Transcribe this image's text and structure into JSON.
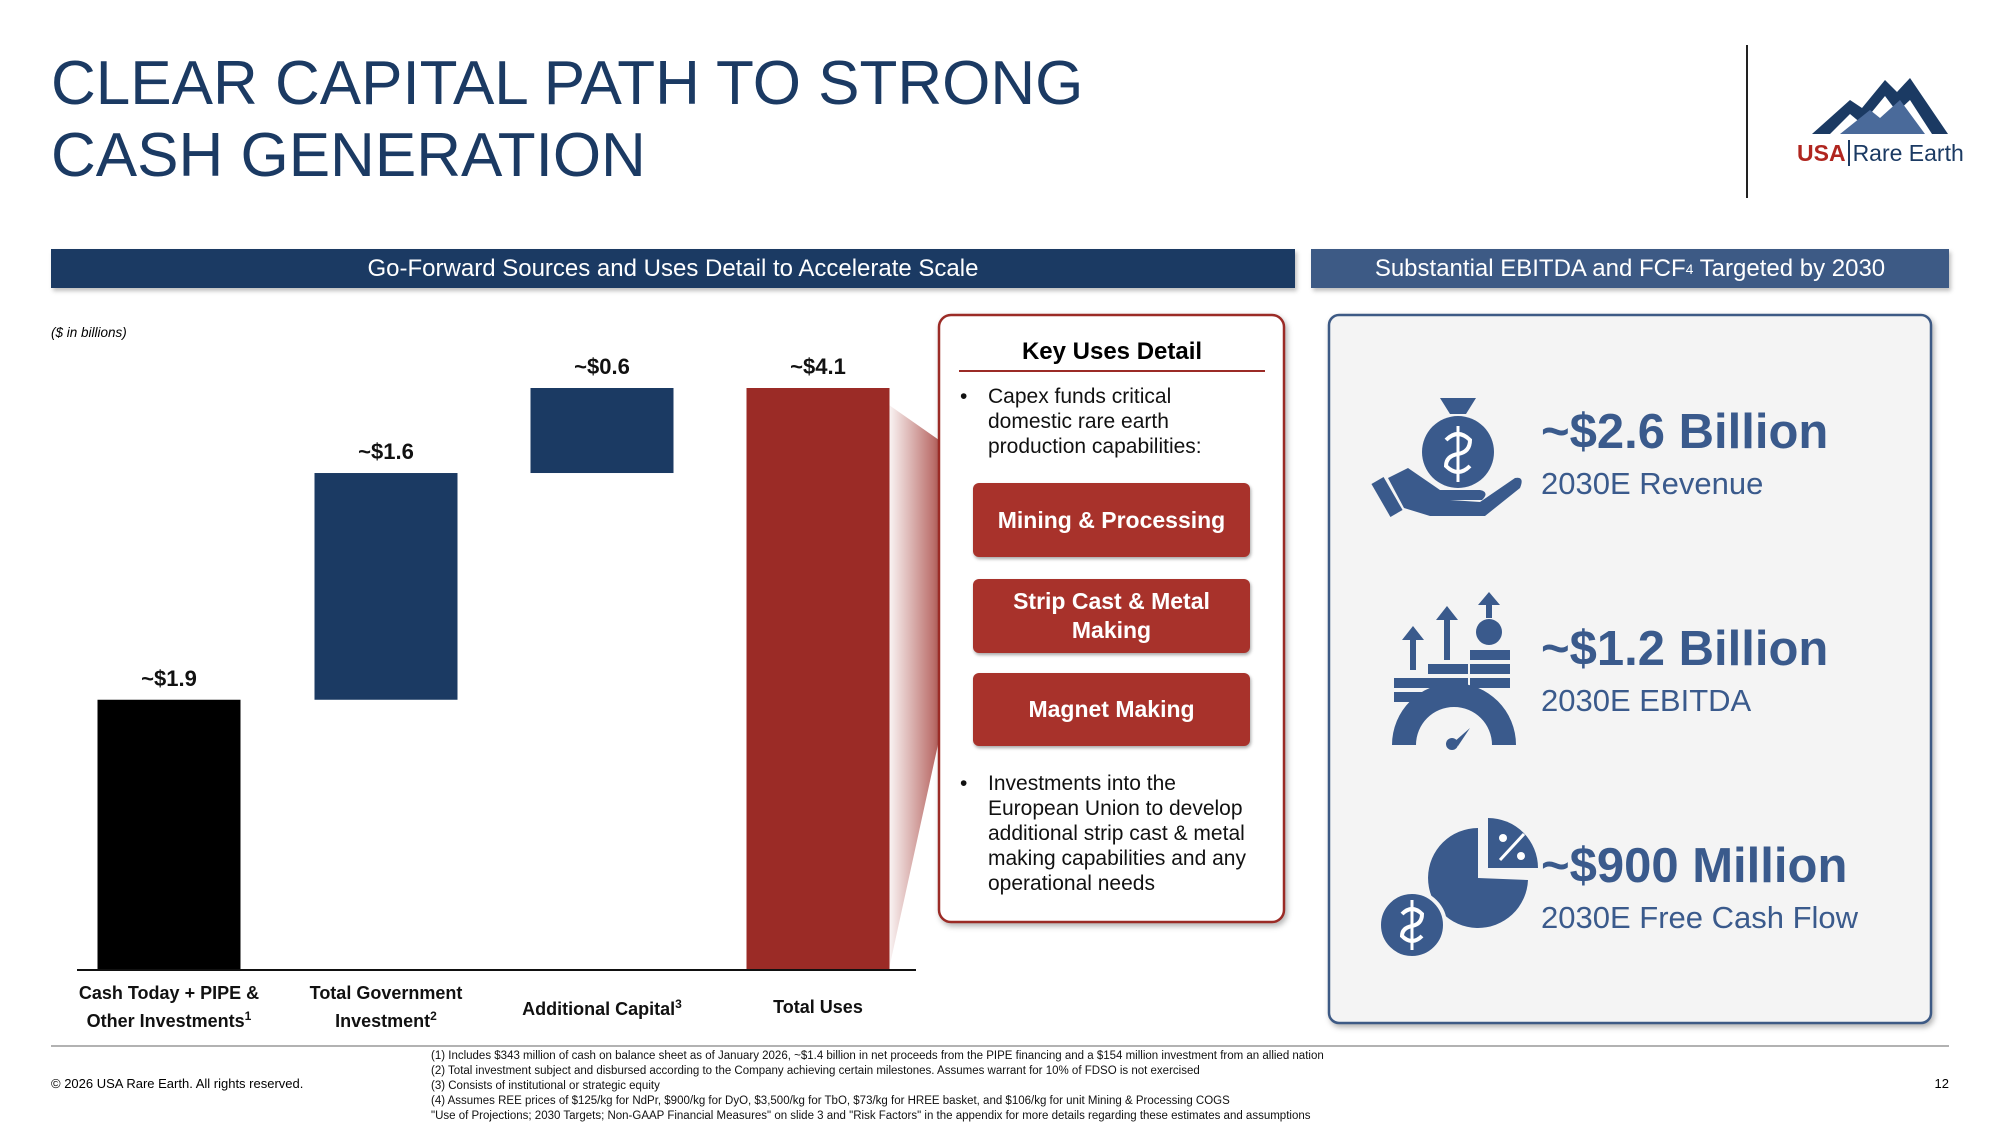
{
  "title": [
    "CLEAR CAPITAL PATH TO STRONG",
    "CASH GENERATION"
  ],
  "logo": {
    "brand": "USA",
    "name": "Rare Earth"
  },
  "header_left": "Go-Forward Sources and Uses Detail to Accelerate Scale",
  "header_right": {
    "text": "Substantial EBITDA and FCF",
    "sup": "4",
    "text_after": " Targeted by 2030"
  },
  "chart_data": {
    "type": "waterfall",
    "units_note": "($ in billions)",
    "categories": [
      "Cash Today + PIPE & Other Investments",
      "Total Government Investment",
      "Additional Capital",
      "Total Uses"
    ],
    "category_notes": [
      "1",
      "2",
      "3",
      null
    ],
    "measures": [
      "absolute",
      "relative",
      "relative",
      "total"
    ],
    "values": [
      1.9,
      1.6,
      0.6,
      4.1
    ],
    "value_labels": [
      "~$1.9",
      "~$1.6",
      "~$0.6",
      "~$4.1"
    ],
    "colors": [
      "#000000",
      "#1b3a63",
      "#1b3a63",
      "#9b2b26"
    ]
  },
  "key_uses": {
    "title": "Key Uses Detail",
    "bullets": [
      "Capex funds critical domestic rare earth production capabilities:",
      "Investments into the European Union to develop additional strip cast & metal making capabilities and any operational needs"
    ],
    "items": [
      "Mining & Processing",
      "Strip Cast & Metal Making",
      "Magnet Making"
    ]
  },
  "kpis": [
    {
      "value": "~$2.6 Billion",
      "label": "2030E Revenue"
    },
    {
      "value": "~$1.2 Billion",
      "label": "2030E EBITDA"
    },
    {
      "value": "~$900 Million",
      "label": "2030E Free Cash Flow"
    }
  ],
  "footnotes": [
    "(1) Includes $343 million of cash on balance sheet as of January 2026, ~$1.4 billion in net proceeds from the PIPE financing and a $154 million investment from an allied nation",
    "(2) Total investment subject and disbursed according to the Company achieving certain milestones. Assumes warrant for 10% of FDSO is not exercised",
    "(3) Consists of institutional or strategic equity",
    "(4) Assumes REE prices of $125/kg for NdPr, $900/kg for DyO, $3,500/kg for TbO, $73/kg for HREE basket, and $106/kg for unit Mining & Processing COGS",
    "\"Use of Projections; 2030 Targets; Non-GAAP Financial Measures\" on slide 3 and \"Risk Factors\" in the appendix for more details regarding these estimates and assumptions"
  ],
  "copyright": "© 2026 USA Rare Earth. All rights reserved.",
  "page_number": "12"
}
